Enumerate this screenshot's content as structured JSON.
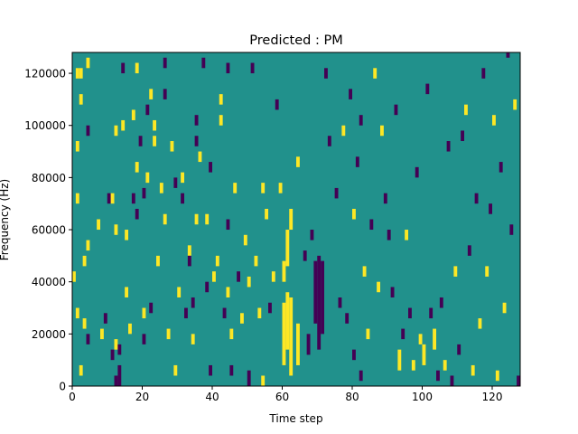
{
  "chart_data": {
    "type": "heatmap",
    "title": "Predicted : PM",
    "xlabel": "Time step",
    "ylabel": "Frequency (Hz)",
    "xlim": [
      0,
      128
    ],
    "ylim": [
      0,
      128000
    ],
    "x_ticks": [
      0,
      20,
      40,
      60,
      80,
      100,
      120
    ],
    "y_ticks": [
      0,
      20000,
      40000,
      60000,
      80000,
      100000,
      120000
    ],
    "x_tick_labels": [
      "0",
      "20",
      "40",
      "60",
      "80",
      "100",
      "120"
    ],
    "y_tick_labels": [
      "0",
      "20000",
      "40000",
      "60000",
      "80000",
      "100000",
      "120000"
    ],
    "grid": false,
    "legend": "none",
    "colormap": "viridis",
    "levels": [
      -1,
      0,
      1
    ],
    "level_colors": {
      "-1": "#440154",
      "0": "#21918c",
      "1": "#fde725"
    },
    "background_value": 0,
    "cell_width": 1,
    "cell_height": 2000,
    "cells": [
      {
        "x": 1,
        "y": 118000,
        "h": 4000,
        "v": 1
      },
      {
        "x": 2,
        "y": 118000,
        "h": 4000,
        "v": 1
      },
      {
        "x": 4,
        "y": 122000,
        "h": 4000,
        "v": 1
      },
      {
        "x": 2,
        "y": 108000,
        "h": 4000,
        "v": 1
      },
      {
        "x": 4,
        "y": 96000,
        "h": 4000,
        "v": -1
      },
      {
        "x": 1,
        "y": 90000,
        "h": 4000,
        "v": 1
      },
      {
        "x": 1,
        "y": 70000,
        "h": 4000,
        "v": 1
      },
      {
        "x": 4,
        "y": 52000,
        "h": 4000,
        "v": 1
      },
      {
        "x": 3,
        "y": 46000,
        "h": 4000,
        "v": 1
      },
      {
        "x": 0,
        "y": 40000,
        "h": 4000,
        "v": 1
      },
      {
        "x": 1,
        "y": 26000,
        "h": 4000,
        "v": 1
      },
      {
        "x": 3,
        "y": 22000,
        "h": 4000,
        "v": 1
      },
      {
        "x": 4,
        "y": 16000,
        "h": 4000,
        "v": -1
      },
      {
        "x": 2,
        "y": 4000,
        "h": 4000,
        "v": 1
      },
      {
        "x": 7,
        "y": 60000,
        "h": 4000,
        "v": 1
      },
      {
        "x": 8,
        "y": 18000,
        "h": 4000,
        "v": 1
      },
      {
        "x": 9,
        "y": 24000,
        "h": 4000,
        "v": -1
      },
      {
        "x": 10,
        "y": 70000,
        "h": 4000,
        "v": -1
      },
      {
        "x": 11,
        "y": 10000,
        "h": 4000,
        "v": -1
      },
      {
        "x": 11,
        "y": 70000,
        "h": 4000,
        "v": 1
      },
      {
        "x": 12,
        "y": 0,
        "h": 4000,
        "v": -1
      },
      {
        "x": 12,
        "y": 14000,
        "h": 4000,
        "v": 1
      },
      {
        "x": 12,
        "y": 58000,
        "h": 4000,
        "v": 1
      },
      {
        "x": 12,
        "y": 96000,
        "h": 4000,
        "v": 1
      },
      {
        "x": 13,
        "y": 4000,
        "h": 4000,
        "v": -1
      },
      {
        "x": 13,
        "y": 0,
        "h": 4000,
        "v": -1
      },
      {
        "x": 13,
        "y": 12000,
        "h": 4000,
        "v": -1
      },
      {
        "x": 14,
        "y": 120000,
        "h": 4000,
        "v": -1
      },
      {
        "x": 14,
        "y": 98000,
        "h": 4000,
        "v": 1
      },
      {
        "x": 15,
        "y": 56000,
        "h": 4000,
        "v": 1
      },
      {
        "x": 15,
        "y": 34000,
        "h": 4000,
        "v": 1
      },
      {
        "x": 16,
        "y": 20000,
        "h": 4000,
        "v": 1
      },
      {
        "x": 17,
        "y": 102000,
        "h": 4000,
        "v": 1
      },
      {
        "x": 17,
        "y": 70000,
        "h": 4000,
        "v": -1
      },
      {
        "x": 18,
        "y": 64000,
        "h": 4000,
        "v": -1
      },
      {
        "x": 18,
        "y": 82000,
        "h": 4000,
        "v": 1
      },
      {
        "x": 18,
        "y": 120000,
        "h": 4000,
        "v": 1
      },
      {
        "x": 19,
        "y": 92000,
        "h": 4000,
        "v": -1
      },
      {
        "x": 20,
        "y": 72000,
        "h": 4000,
        "v": -1
      },
      {
        "x": 20,
        "y": 16000,
        "h": 4000,
        "v": -1
      },
      {
        "x": 20,
        "y": 26000,
        "h": 4000,
        "v": 1
      },
      {
        "x": 21,
        "y": 78000,
        "h": 4000,
        "v": 1
      },
      {
        "x": 21,
        "y": 104000,
        "h": 4000,
        "v": -1
      },
      {
        "x": 22,
        "y": 110000,
        "h": 4000,
        "v": 1
      },
      {
        "x": 22,
        "y": 28000,
        "h": 4000,
        "v": -1
      },
      {
        "x": 23,
        "y": 92000,
        "h": 4000,
        "v": 1
      },
      {
        "x": 23,
        "y": 98000,
        "h": 4000,
        "v": 1
      },
      {
        "x": 24,
        "y": 46000,
        "h": 4000,
        "v": 1
      },
      {
        "x": 25,
        "y": 74000,
        "h": 4000,
        "v": 1
      },
      {
        "x": 26,
        "y": 122000,
        "h": 4000,
        "v": -1
      },
      {
        "x": 26,
        "y": 110000,
        "h": 4000,
        "v": -1
      },
      {
        "x": 26,
        "y": 62000,
        "h": 4000,
        "v": 1
      },
      {
        "x": 27,
        "y": 18000,
        "h": 4000,
        "v": 1
      },
      {
        "x": 28,
        "y": 90000,
        "h": 4000,
        "v": 1
      },
      {
        "x": 29,
        "y": 4000,
        "h": 4000,
        "v": 1
      },
      {
        "x": 29,
        "y": 76000,
        "h": 4000,
        "v": -1
      },
      {
        "x": 30,
        "y": 34000,
        "h": 4000,
        "v": 1
      },
      {
        "x": 31,
        "y": 70000,
        "h": 4000,
        "v": -1
      },
      {
        "x": 31,
        "y": 78000,
        "h": 4000,
        "v": 1
      },
      {
        "x": 32,
        "y": 26000,
        "h": 4000,
        "v": -1
      },
      {
        "x": 33,
        "y": 50000,
        "h": 4000,
        "v": 1
      },
      {
        "x": 33,
        "y": 46000,
        "h": 4000,
        "v": -1
      },
      {
        "x": 34,
        "y": 16000,
        "h": 4000,
        "v": 1
      },
      {
        "x": 34,
        "y": 30000,
        "h": 4000,
        "v": -1
      },
      {
        "x": 35,
        "y": 62000,
        "h": 4000,
        "v": 1
      },
      {
        "x": 35,
        "y": 92000,
        "h": 4000,
        "v": -1
      },
      {
        "x": 35,
        "y": 100000,
        "h": 4000,
        "v": -1
      },
      {
        "x": 36,
        "y": 86000,
        "h": 4000,
        "v": 1
      },
      {
        "x": 37,
        "y": 122000,
        "h": 4000,
        "v": -1
      },
      {
        "x": 38,
        "y": 62000,
        "h": 4000,
        "v": 1
      },
      {
        "x": 38,
        "y": 36000,
        "h": 4000,
        "v": -1
      },
      {
        "x": 39,
        "y": 4000,
        "h": 4000,
        "v": -1
      },
      {
        "x": 39,
        "y": 82000,
        "h": 4000,
        "v": -1
      },
      {
        "x": 40,
        "y": 40000,
        "h": 4000,
        "v": 1
      },
      {
        "x": 41,
        "y": 46000,
        "h": 4000,
        "v": 1
      },
      {
        "x": 42,
        "y": 100000,
        "h": 4000,
        "v": 1
      },
      {
        "x": 42,
        "y": 108000,
        "h": 4000,
        "v": 1
      },
      {
        "x": 43,
        "y": 26000,
        "h": 4000,
        "v": -1
      },
      {
        "x": 44,
        "y": 120000,
        "h": 4000,
        "v": -1
      },
      {
        "x": 44,
        "y": 60000,
        "h": 4000,
        "v": -1
      },
      {
        "x": 44,
        "y": 34000,
        "h": 4000,
        "v": 1
      },
      {
        "x": 45,
        "y": 4000,
        "h": 4000,
        "v": -1
      },
      {
        "x": 45,
        "y": 18000,
        "h": 4000,
        "v": 1
      },
      {
        "x": 46,
        "y": 74000,
        "h": 4000,
        "v": 1
      },
      {
        "x": 47,
        "y": 40000,
        "h": 4000,
        "v": -1
      },
      {
        "x": 48,
        "y": 24000,
        "h": 4000,
        "v": 1
      },
      {
        "x": 49,
        "y": 54000,
        "h": 4000,
        "v": 1
      },
      {
        "x": 50,
        "y": 0,
        "h": 6000,
        "v": -1
      },
      {
        "x": 50,
        "y": 38000,
        "h": 4000,
        "v": 1
      },
      {
        "x": 51,
        "y": 120000,
        "h": 4000,
        "v": -1
      },
      {
        "x": 52,
        "y": 46000,
        "h": 4000,
        "v": 1
      },
      {
        "x": 53,
        "y": 26000,
        "h": 4000,
        "v": 1
      },
      {
        "x": 54,
        "y": 0,
        "h": 4000,
        "v": 1
      },
      {
        "x": 54,
        "y": 74000,
        "h": 4000,
        "v": 1
      },
      {
        "x": 55,
        "y": 64000,
        "h": 4000,
        "v": 1
      },
      {
        "x": 56,
        "y": 28000,
        "h": 4000,
        "v": -1
      },
      {
        "x": 57,
        "y": 40000,
        "h": 4000,
        "v": 1
      },
      {
        "x": 58,
        "y": 106000,
        "h": 4000,
        "v": -1
      },
      {
        "x": 59,
        "y": 74000,
        "h": 4000,
        "v": 1
      },
      {
        "x": 60,
        "y": 40000,
        "h": 8000,
        "v": 1
      },
      {
        "x": 60,
        "y": 8000,
        "h": 24000,
        "v": 1
      },
      {
        "x": 61,
        "y": 14000,
        "h": 22000,
        "v": 1
      },
      {
        "x": 61,
        "y": 46000,
        "h": 14000,
        "v": 1
      },
      {
        "x": 62,
        "y": 4000,
        "h": 30000,
        "v": 1
      },
      {
        "x": 62,
        "y": 60000,
        "h": 8000,
        "v": 1
      },
      {
        "x": 64,
        "y": 8000,
        "h": 16000,
        "v": 1
      },
      {
        "x": 64,
        "y": 84000,
        "h": 4000,
        "v": 1
      },
      {
        "x": 66,
        "y": 48000,
        "h": 4000,
        "v": -1
      },
      {
        "x": 67,
        "y": 12000,
        "h": 8000,
        "v": -1
      },
      {
        "x": 68,
        "y": 56000,
        "h": 4000,
        "v": -1
      },
      {
        "x": 69,
        "y": 24000,
        "h": 24000,
        "v": -1
      },
      {
        "x": 70,
        "y": 14000,
        "h": 36000,
        "v": -1
      },
      {
        "x": 71,
        "y": 20000,
        "h": 28000,
        "v": -1
      },
      {
        "x": 72,
        "y": 118000,
        "h": 4000,
        "v": -1
      },
      {
        "x": 73,
        "y": 92000,
        "h": 4000,
        "v": -1
      },
      {
        "x": 75,
        "y": 72000,
        "h": 4000,
        "v": -1
      },
      {
        "x": 76,
        "y": 30000,
        "h": 4000,
        "v": -1
      },
      {
        "x": 77,
        "y": 96000,
        "h": 4000,
        "v": 1
      },
      {
        "x": 78,
        "y": 24000,
        "h": 4000,
        "v": -1
      },
      {
        "x": 79,
        "y": 110000,
        "h": 4000,
        "v": -1
      },
      {
        "x": 80,
        "y": 10000,
        "h": 4000,
        "v": -1
      },
      {
        "x": 80,
        "y": 64000,
        "h": 4000,
        "v": 1
      },
      {
        "x": 81,
        "y": 84000,
        "h": 4000,
        "v": -1
      },
      {
        "x": 82,
        "y": 2000,
        "h": 4000,
        "v": -1
      },
      {
        "x": 82,
        "y": 100000,
        "h": 4000,
        "v": -1
      },
      {
        "x": 83,
        "y": 42000,
        "h": 4000,
        "v": 1
      },
      {
        "x": 84,
        "y": 18000,
        "h": 4000,
        "v": 1
      },
      {
        "x": 85,
        "y": 60000,
        "h": 4000,
        "v": -1
      },
      {
        "x": 86,
        "y": 118000,
        "h": 4000,
        "v": 1
      },
      {
        "x": 87,
        "y": 36000,
        "h": 4000,
        "v": 1
      },
      {
        "x": 88,
        "y": 96000,
        "h": 4000,
        "v": 1
      },
      {
        "x": 89,
        "y": 70000,
        "h": 4000,
        "v": -1
      },
      {
        "x": 90,
        "y": 56000,
        "h": 4000,
        "v": -1
      },
      {
        "x": 91,
        "y": 34000,
        "h": 4000,
        "v": -1
      },
      {
        "x": 92,
        "y": 104000,
        "h": 4000,
        "v": -1
      },
      {
        "x": 93,
        "y": 6000,
        "h": 8000,
        "v": 1
      },
      {
        "x": 94,
        "y": 18000,
        "h": 4000,
        "v": -1
      },
      {
        "x": 95,
        "y": 56000,
        "h": 4000,
        "v": 1
      },
      {
        "x": 96,
        "y": 26000,
        "h": 4000,
        "v": -1
      },
      {
        "x": 97,
        "y": 6000,
        "h": 4000,
        "v": 1
      },
      {
        "x": 98,
        "y": 80000,
        "h": 4000,
        "v": -1
      },
      {
        "x": 99,
        "y": 16000,
        "h": 4000,
        "v": 1
      },
      {
        "x": 100,
        "y": 8000,
        "h": 8000,
        "v": 1
      },
      {
        "x": 101,
        "y": 112000,
        "h": 4000,
        "v": -1
      },
      {
        "x": 102,
        "y": 26000,
        "h": 4000,
        "v": -1
      },
      {
        "x": 103,
        "y": 14000,
        "h": 8000,
        "v": 1
      },
      {
        "x": 104,
        "y": 2000,
        "h": 4000,
        "v": -1
      },
      {
        "x": 105,
        "y": 30000,
        "h": 4000,
        "v": -1
      },
      {
        "x": 106,
        "y": 6000,
        "h": 4000,
        "v": 1
      },
      {
        "x": 107,
        "y": 90000,
        "h": 4000,
        "v": -1
      },
      {
        "x": 108,
        "y": 0,
        "h": 4000,
        "v": -1
      },
      {
        "x": 109,
        "y": 42000,
        "h": 4000,
        "v": 1
      },
      {
        "x": 110,
        "y": 12000,
        "h": 4000,
        "v": -1
      },
      {
        "x": 111,
        "y": 94000,
        "h": 4000,
        "v": -1
      },
      {
        "x": 112,
        "y": 104000,
        "h": 4000,
        "v": 1
      },
      {
        "x": 113,
        "y": 50000,
        "h": 4000,
        "v": -1
      },
      {
        "x": 114,
        "y": 4000,
        "h": 4000,
        "v": 1
      },
      {
        "x": 115,
        "y": 70000,
        "h": 4000,
        "v": -1
      },
      {
        "x": 116,
        "y": 22000,
        "h": 4000,
        "v": 1
      },
      {
        "x": 117,
        "y": 118000,
        "h": 4000,
        "v": -1
      },
      {
        "x": 118,
        "y": 42000,
        "h": 4000,
        "v": 1
      },
      {
        "x": 119,
        "y": 66000,
        "h": 4000,
        "v": -1
      },
      {
        "x": 120,
        "y": 100000,
        "h": 4000,
        "v": 1
      },
      {
        "x": 121,
        "y": 2000,
        "h": 4000,
        "v": 1
      },
      {
        "x": 122,
        "y": 82000,
        "h": 4000,
        "v": -1
      },
      {
        "x": 123,
        "y": 28000,
        "h": 4000,
        "v": 1
      },
      {
        "x": 124,
        "y": 126000,
        "h": 2000,
        "v": -1
      },
      {
        "x": 125,
        "y": 58000,
        "h": 4000,
        "v": -1
      },
      {
        "x": 126,
        "y": 106000,
        "h": 4000,
        "v": 1
      },
      {
        "x": 127,
        "y": 0,
        "h": 4000,
        "v": -1
      }
    ]
  }
}
